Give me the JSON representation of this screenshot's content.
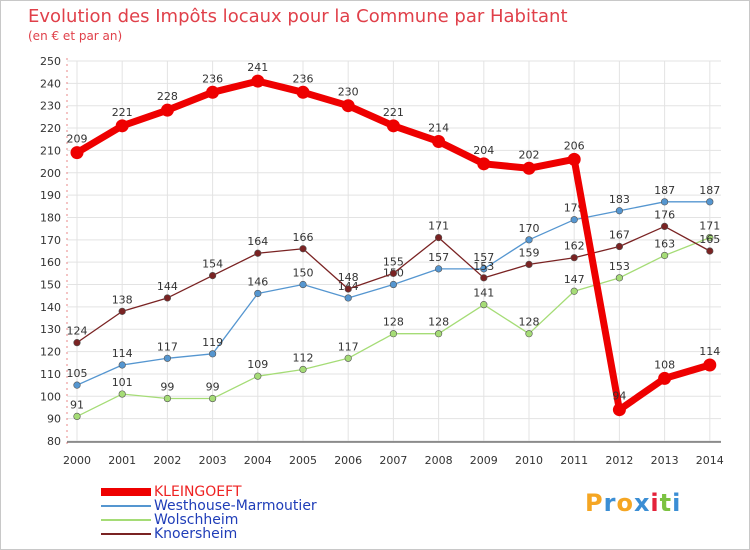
{
  "title": "Evolution des Impôts locaux pour la Commune par Habitant",
  "subtitle": "(en € et par an)",
  "logo": {
    "text": "Proxiti",
    "letters": [
      "P",
      "r",
      "o",
      "x",
      "i",
      "t",
      "i"
    ],
    "colors": [
      "#f5a623",
      "#3b8ed4",
      "#f5a623",
      "#3b8ed4",
      "#e4223a",
      "#7cc242",
      "#3b8ed4"
    ]
  },
  "chart_data": {
    "type": "line",
    "title": "Evolution des Impôts locaux pour la Commune par Habitant",
    "subtitle": "(en € et par an)",
    "xlabel": "",
    "ylabel": "",
    "ylim": [
      80,
      250
    ],
    "y_ticks": [
      80,
      90,
      100,
      110,
      120,
      130,
      140,
      150,
      160,
      170,
      180,
      190,
      200,
      210,
      220,
      230,
      240,
      250
    ],
    "categories": [
      "2000",
      "2001",
      "2002",
      "2003",
      "2004",
      "2005",
      "2006",
      "2007",
      "2008",
      "2009",
      "2010",
      "2011",
      "2012",
      "2013",
      "2014"
    ],
    "grid": true,
    "legend_position": "bottom-left",
    "series": [
      {
        "name": "KLEINGOEFT",
        "color": "#ee0000",
        "emphasis": true,
        "values": [
          209,
          221,
          228,
          236,
          241,
          236,
          230,
          221,
          214,
          204,
          202,
          206,
          94,
          108,
          114
        ]
      },
      {
        "name": "Westhouse-Marmoutier",
        "color": "#5596d0",
        "emphasis": false,
        "values": [
          105,
          114,
          117,
          119,
          146,
          150,
          144,
          150,
          157,
          157,
          170,
          179,
          183,
          187,
          187
        ]
      },
      {
        "name": "Wolschheim",
        "color": "#a5dc76",
        "emphasis": false,
        "values": [
          91,
          101,
          99,
          99,
          109,
          112,
          117,
          128,
          128,
          141,
          128,
          147,
          153,
          163,
          171
        ]
      },
      {
        "name": "Knoersheim",
        "color": "#7a2323",
        "emphasis": false,
        "values": [
          124,
          138,
          144,
          154,
          164,
          166,
          148,
          155,
          171,
          153,
          159,
          162,
          167,
          176,
          165
        ]
      }
    ],
    "data_labels": [
      [
        "209",
        "221",
        "228",
        "236",
        "241",
        "236",
        "230",
        "221",
        "214",
        "204",
        "202",
        "206",
        "94",
        "108",
        "114"
      ],
      [
        "105",
        "114",
        "117",
        "119",
        "146",
        "150",
        "144",
        "150",
        "157",
        "157",
        "170",
        "179",
        "183",
        "187",
        "187"
      ],
      [
        "91",
        "101",
        "99",
        "99",
        "109",
        "112",
        "117",
        "128",
        "128",
        "141",
        "128",
        "147",
        "153",
        "163",
        "171"
      ],
      [
        "124",
        "138",
        "144",
        "154",
        "164",
        "166",
        "148",
        "155",
        "171",
        "153",
        "159",
        "162",
        "167",
        "176",
        "165"
      ]
    ]
  }
}
